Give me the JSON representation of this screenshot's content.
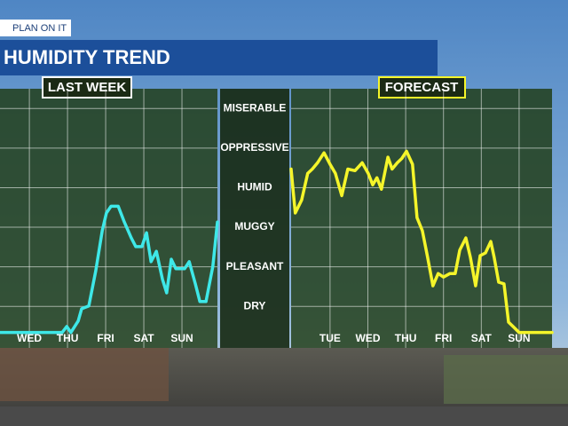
{
  "header": {
    "tag": "PLAN ON IT",
    "title": "HUMIDITY TREND"
  },
  "chart_data": [
    {
      "type": "line",
      "title": "LAST WEEK",
      "color": "#3ee8e8",
      "x": [
        0.23,
        1.86,
        1.98,
        2.09,
        2.28,
        2.37,
        2.56,
        2.74,
        2.91,
        3.02,
        3.14,
        3.33,
        3.49,
        3.67,
        3.79,
        3.95,
        4.07,
        4.19,
        4.33,
        4.49,
        4.6,
        4.72,
        4.84,
        5.07,
        5.19,
        5.35,
        5.47,
        5.63,
        5.81,
        5.93
      ],
      "values": [
        0.34,
        0.34,
        0.49,
        0.34,
        0.63,
        0.94,
        1.01,
        1.9,
        2.91,
        3.36,
        3.53,
        3.53,
        3.13,
        2.73,
        2.51,
        2.51,
        2.86,
        2.13,
        2.39,
        1.68,
        1.34,
        2.19,
        1.95,
        1.95,
        2.13,
        1.57,
        1.12,
        1.12,
        2.01,
        3.13
      ],
      "xlim": [
        0.23,
        5.93
      ],
      "xticks": [
        {
          "value": 1,
          "label": "WED"
        },
        {
          "value": 2,
          "label": "THU"
        },
        {
          "value": 3,
          "label": "FRI"
        },
        {
          "value": 4,
          "label": "SAT"
        },
        {
          "value": 5,
          "label": "SUN"
        }
      ],
      "ylim": [
        -0.05,
        6.5
      ],
      "yticks": [
        {
          "value": 1,
          "label": "DRY"
        },
        {
          "value": 2,
          "label": "PLEASANT"
        },
        {
          "value": 3,
          "label": "MUGGY"
        },
        {
          "value": 4,
          "label": "HUMID"
        },
        {
          "value": 5,
          "label": "OPPRESSIVE"
        },
        {
          "value": 6,
          "label": "MISERABLE"
        }
      ]
    },
    {
      "type": "line",
      "title": "FORECAST",
      "color": "#f5f52a",
      "x": [
        -0.03,
        0.08,
        0.25,
        0.41,
        0.53,
        0.67,
        0.84,
        1.0,
        1.14,
        1.31,
        1.47,
        1.66,
        1.85,
        2.01,
        2.13,
        2.24,
        2.36,
        2.53,
        2.64,
        2.78,
        2.9,
        3.02,
        3.18,
        3.3,
        3.44,
        3.58,
        3.72,
        3.86,
        4.0,
        4.17,
        4.31,
        4.43,
        4.59,
        4.71,
        4.85,
        4.97,
        5.11,
        5.25,
        5.34,
        5.46,
        5.6,
        5.72,
        5.84,
        6.0,
        6.87
      ],
      "values": [
        4.47,
        3.36,
        3.69,
        4.36,
        4.47,
        4.63,
        4.88,
        4.59,
        4.36,
        3.8,
        4.47,
        4.43,
        4.63,
        4.36,
        4.07,
        4.25,
        3.96,
        4.77,
        4.47,
        4.63,
        4.74,
        4.92,
        4.59,
        3.24,
        2.91,
        2.24,
        1.52,
        1.83,
        1.74,
        1.83,
        1.83,
        2.42,
        2.73,
        2.24,
        1.52,
        2.28,
        2.35,
        2.64,
        2.24,
        1.61,
        1.57,
        0.6,
        0.49,
        0.34,
        0.34
      ],
      "xlim": [
        -0.03,
        6.87
      ],
      "xticks": [
        {
          "value": 1,
          "label": "TUE"
        },
        {
          "value": 2,
          "label": "WED"
        },
        {
          "value": 3,
          "label": "THU"
        },
        {
          "value": 4,
          "label": "FRI"
        },
        {
          "value": 5,
          "label": "SAT"
        },
        {
          "value": 6,
          "label": "SUN"
        }
      ],
      "ylim": [
        -0.05,
        6.5
      ],
      "yticks": [
        1,
        2,
        3,
        4,
        5,
        6
      ]
    }
  ]
}
